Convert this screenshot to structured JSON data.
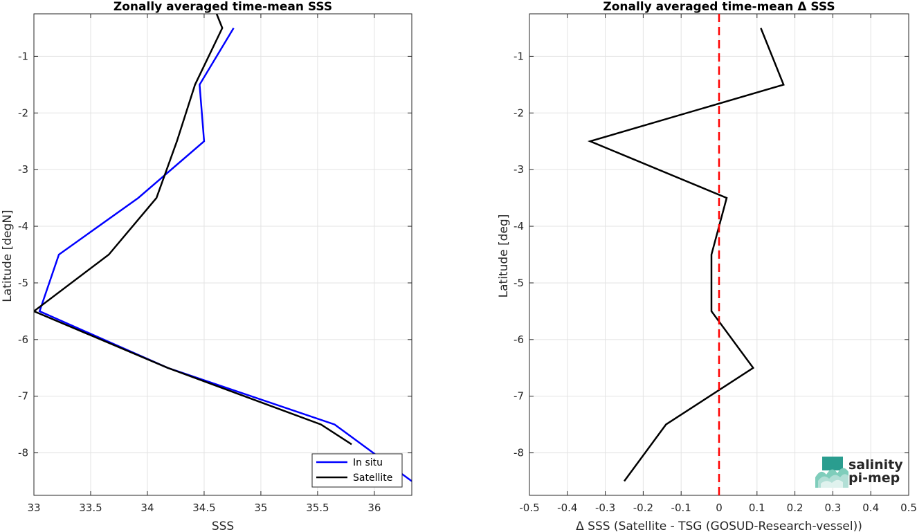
{
  "logo": {
    "line1": "salinity",
    "line2": "pi-mep"
  },
  "chart_data": [
    {
      "type": "line",
      "title": "Zonally averaged time-mean SSS",
      "xlabel": "SSS",
      "ylabel": "Latitude [degN]",
      "xlim": [
        33,
        36.33
      ],
      "ylim": [
        -8.75,
        -0.25
      ],
      "xticks": [
        33,
        33.5,
        34,
        34.5,
        35,
        35.5,
        36
      ],
      "xtick_labels": [
        "33",
        "33.5",
        "34",
        "34.5",
        "35",
        "35.5",
        "36"
      ],
      "yticks": [
        -1,
        -2,
        -3,
        -4,
        -5,
        -6,
        -7,
        -8
      ],
      "ytick_labels": [
        "-1",
        "-2",
        "-3",
        "-4",
        "-5",
        "-6",
        "-7",
        "-8"
      ],
      "grid": true,
      "legend": "bottom-right",
      "series": [
        {
          "name": "In situ",
          "color": "#0000ff",
          "x": [
            34.76,
            34.46,
            34.5,
            33.92,
            33.22,
            33.05,
            34.18,
            35.65,
            36.33
          ],
          "y": [
            -0.5,
            -1.5,
            -2.5,
            -3.5,
            -4.5,
            -5.5,
            -6.5,
            -7.5,
            -8.5
          ]
        },
        {
          "name": "Satellite",
          "color": "#000000",
          "x": [
            34.61,
            34.66,
            34.42,
            34.26,
            34.08,
            33.66,
            33.0,
            34.18,
            35.53,
            35.8
          ],
          "y": [
            -0.25,
            -0.5,
            -1.5,
            -2.5,
            -3.5,
            -4.5,
            -5.5,
            -6.5,
            -7.5,
            -7.85
          ]
        }
      ]
    },
    {
      "type": "line",
      "title": "Zonally averaged time-mean Δ SSS",
      "xlabel": "Δ SSS (Satellite - TSG (GOSUD-Research-vessel))",
      "ylabel": "Latitude [deg]",
      "xlim": [
        -0.5,
        0.5
      ],
      "ylim": [
        -8.75,
        -0.25
      ],
      "xticks": [
        -0.5,
        -0.4,
        -0.3,
        -0.2,
        -0.1,
        0,
        0.1,
        0.2,
        0.3,
        0.4,
        0.5
      ],
      "xtick_labels": [
        "-0.5",
        "-0.4",
        "-0.3",
        "-0.2",
        "-0.1",
        "0",
        "0.1",
        "0.2",
        "0.3",
        "0.4",
        "0.5"
      ],
      "yticks": [
        -1,
        -2,
        -3,
        -4,
        -5,
        -6,
        -7,
        -8
      ],
      "ytick_labels": [
        "-1",
        "-2",
        "-3",
        "-4",
        "-5",
        "-6",
        "-7",
        "-8"
      ],
      "grid": true,
      "reference_line": {
        "x": 0,
        "color": "#ff0000",
        "style": "dashed"
      },
      "series": [
        {
          "color": "#000000",
          "x": [
            0.11,
            0.17,
            -0.34,
            0.02,
            -0.02,
            -0.02,
            0.09,
            -0.14,
            -0.25
          ],
          "y": [
            -0.5,
            -1.5,
            -2.5,
            -3.5,
            -4.5,
            -5.5,
            -6.5,
            -7.5,
            -8.5
          ]
        }
      ]
    }
  ]
}
